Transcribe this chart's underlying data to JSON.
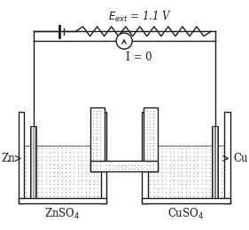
{
  "bg_color": "#ffffff",
  "line_color": "#1a1a1a",
  "dot_color": "#888888",
  "eext_label": "$E_{ext}$ = 1.1 V",
  "i_label": "I = 0",
  "zn_label": "Zn",
  "cu_label": "Cu",
  "znso4_label": "ZnSO$_4$",
  "cuso4_label": "CuSO$_4$",
  "figw": 2.81,
  "figh": 2.59,
  "dpi": 100
}
